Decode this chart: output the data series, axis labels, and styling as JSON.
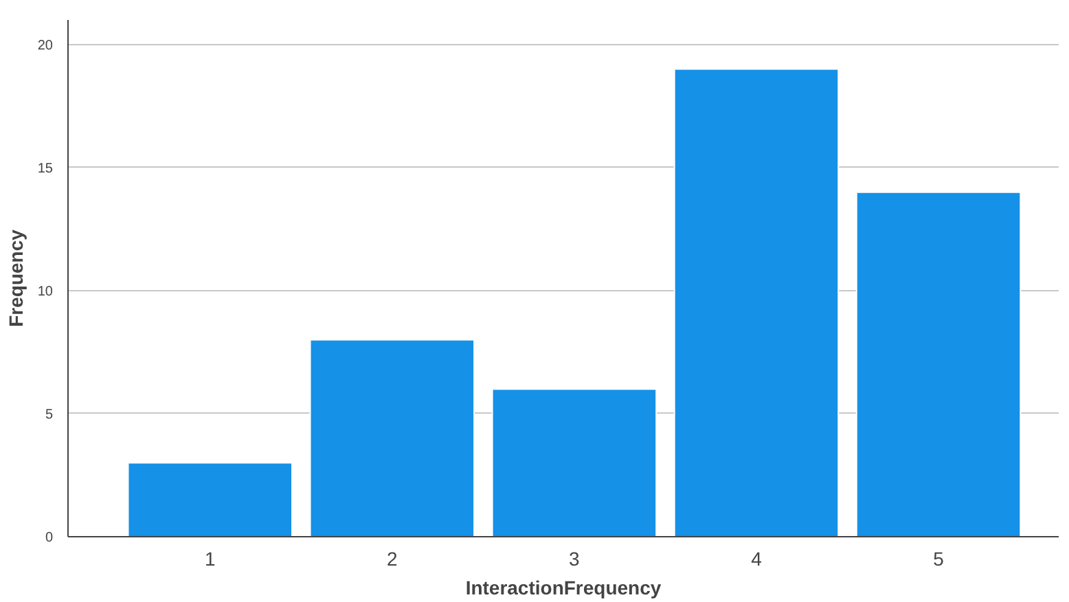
{
  "chart_data": {
    "type": "bar",
    "xlabel": "InteractionFrequency",
    "ylabel": "Frequency",
    "categories": [
      "1",
      "2",
      "3",
      "4",
      "5"
    ],
    "values": [
      3,
      8,
      6,
      19,
      14
    ],
    "color": "#1591e8",
    "ylim": [
      0,
      21
    ],
    "yticks": [
      0,
      5,
      10,
      15,
      20
    ],
    "grid": "y"
  }
}
